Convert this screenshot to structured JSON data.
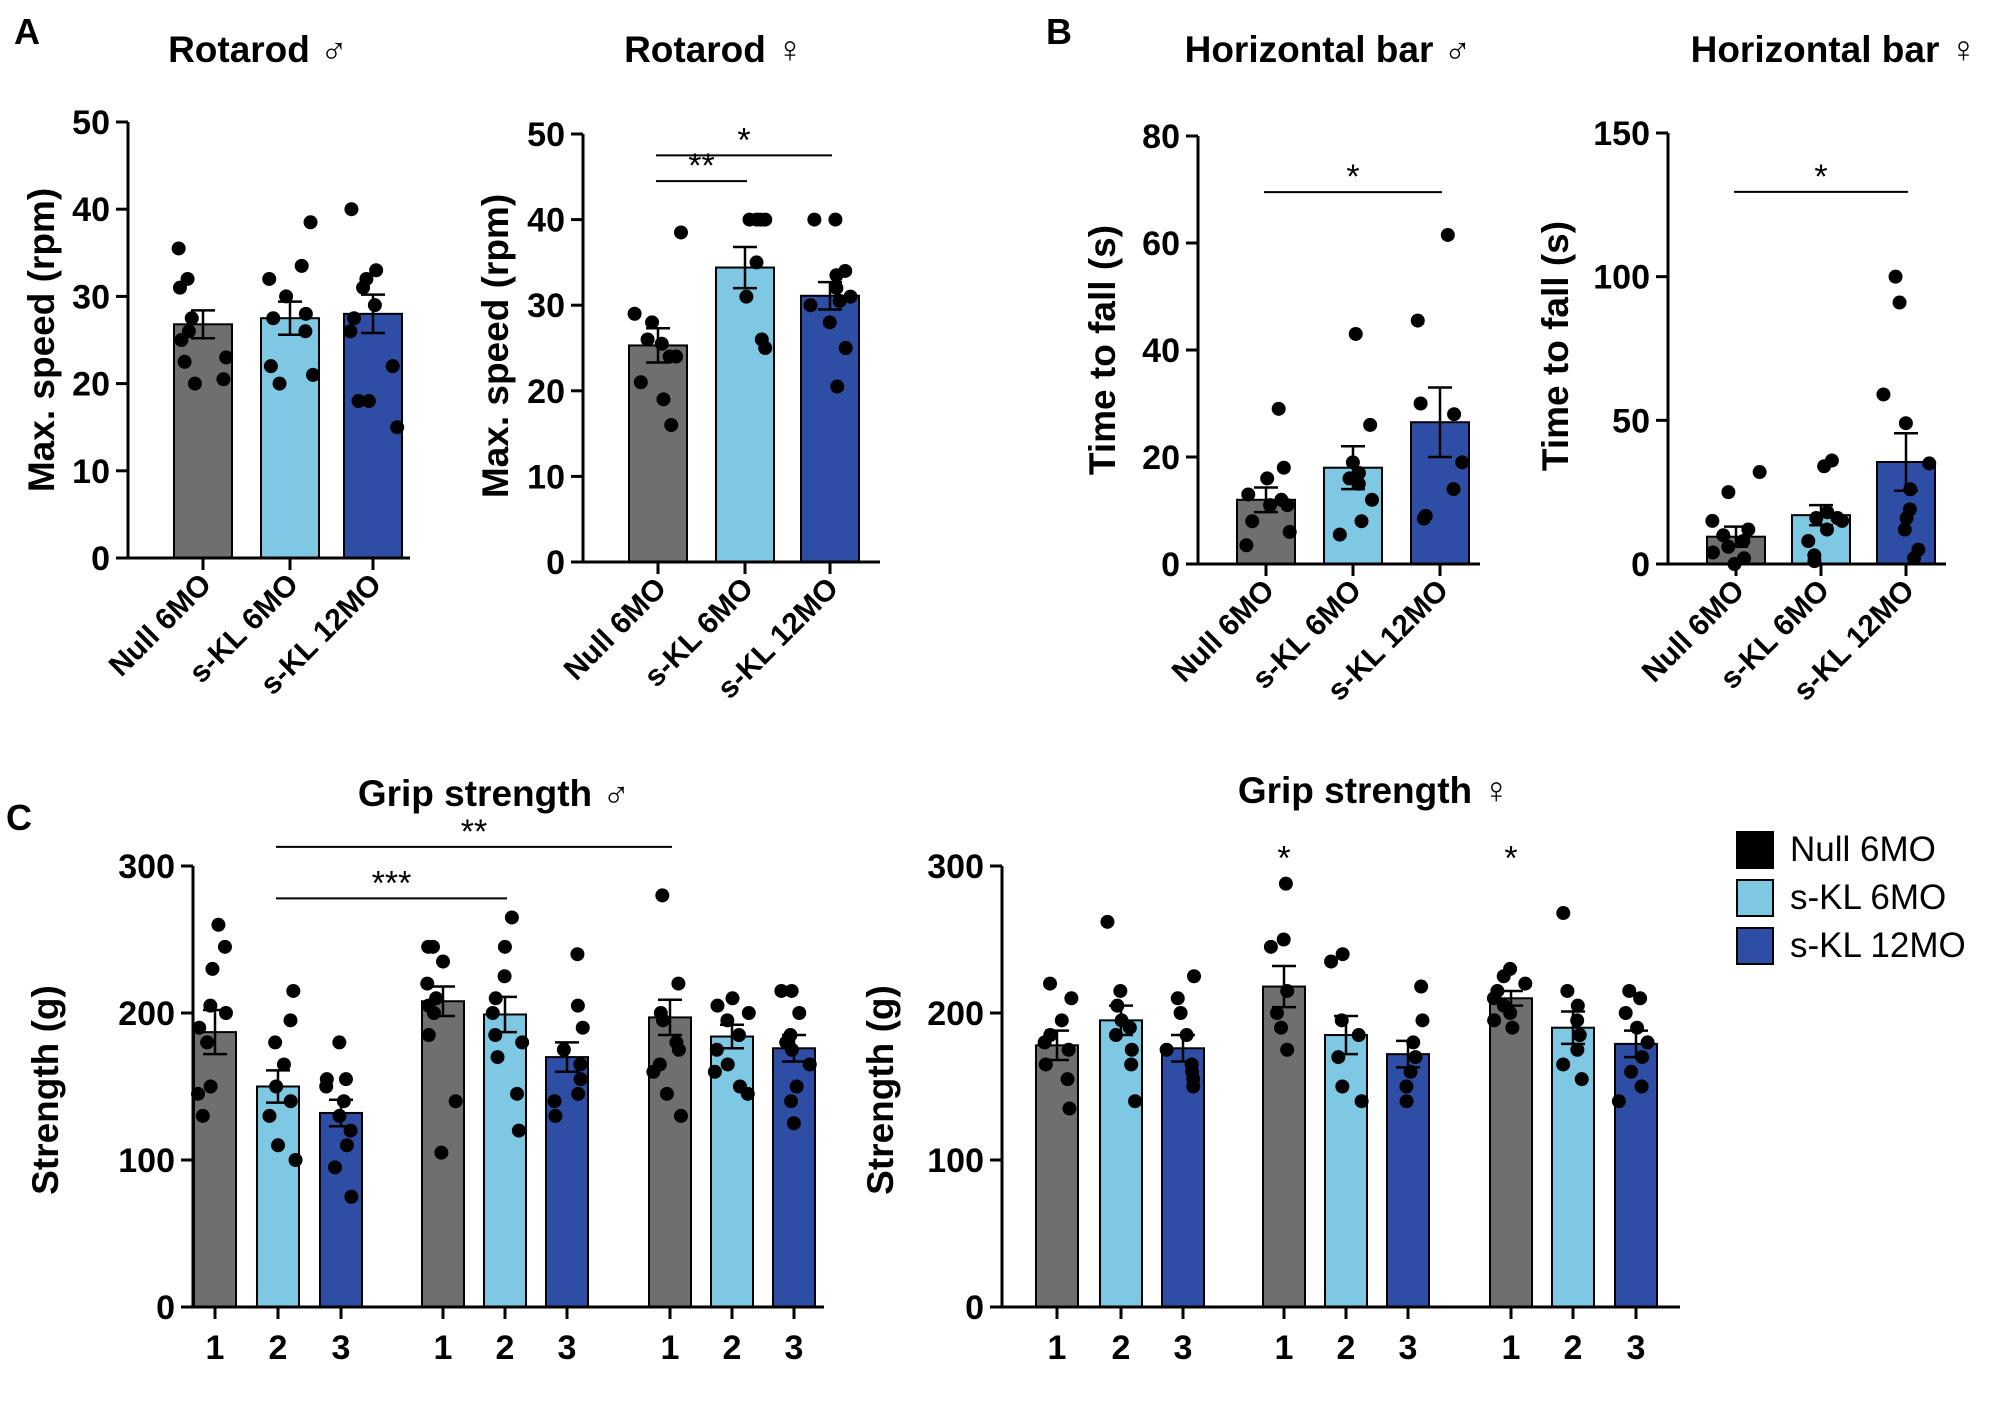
{
  "panel_letters": {
    "a": "A",
    "b": "B",
    "c": "C"
  },
  "legend": [
    {
      "label": "Null 6MO",
      "color": "#000000"
    },
    {
      "label": "s-KL 6MO",
      "color": "#7ec8e3"
    },
    {
      "label": "s-KL 12MO",
      "color": "#2e4ea6"
    }
  ],
  "colors": {
    "null": "#6f706d",
    "skl6": "#7ec8e3",
    "skl12": "#2e4ea6"
  },
  "chart_data": [
    {
      "id": "rotarod_m",
      "type": "bar",
      "title": "Rotarod ♂",
      "ylabel": "Max. speed (rpm)",
      "ylim": [
        0,
        50
      ],
      "yticks": [
        0,
        10,
        20,
        30,
        40,
        50
      ],
      "categories": [
        "Null 6MO",
        "s-KL 6MO",
        "s-KL 12MO"
      ],
      "values": [
        26.8,
        27.5,
        28.0
      ],
      "errors": [
        1.6,
        1.9,
        2.2
      ],
      "points": [
        [
          35.5,
          32,
          31,
          27.5,
          26,
          25,
          23,
          22.5,
          20,
          20.5
        ],
        [
          38.5,
          33.5,
          32,
          30,
          28,
          27.5,
          26,
          22,
          21,
          20
        ],
        [
          40,
          33,
          32,
          31,
          29,
          27.5,
          26,
          22,
          18,
          18,
          15
        ]
      ],
      "significance": []
    },
    {
      "id": "rotarod_f",
      "type": "bar",
      "title": "Rotarod ♀",
      "ylabel": "Max. speed (rpm)",
      "ylim": [
        0,
        50
      ],
      "yticks": [
        0,
        10,
        20,
        30,
        40,
        50
      ],
      "categories": [
        "Null 6MO",
        "s-KL 6MO",
        "s-KL 12MO"
      ],
      "values": [
        25.3,
        34.4,
        31.1
      ],
      "errors": [
        2.0,
        2.4,
        1.6
      ],
      "points": [
        [
          38.5,
          29,
          28,
          26,
          25.5,
          24,
          24,
          21,
          19,
          16
        ],
        [
          40,
          40,
          40,
          40,
          35,
          31,
          26,
          25
        ],
        [
          40,
          40,
          34,
          33.5,
          32,
          31,
          30.5,
          30,
          28,
          25,
          20.5
        ]
      ],
      "significance": [
        {
          "from": 0,
          "to": 1,
          "label": "**",
          "y": 44.5
        },
        {
          "from": 0,
          "to": 2,
          "label": "*",
          "y": 47.5
        }
      ]
    },
    {
      "id": "hbar_m",
      "type": "bar",
      "title": "Horizontal bar ♂",
      "ylabel": "Time to fall (s)",
      "ylim": [
        0,
        80
      ],
      "yticks": [
        0,
        20,
        40,
        60,
        80
      ],
      "categories": [
        "Null 6MO",
        "s-KL 6MO",
        "s-KL 12MO"
      ],
      "values": [
        12.0,
        18.0,
        26.5
      ],
      "errors": [
        2.3,
        4.0,
        6.5
      ],
      "points": [
        [
          29,
          18,
          16,
          13,
          12,
          11,
          11,
          8,
          6,
          3.5
        ],
        [
          43,
          26,
          19,
          17,
          16,
          15,
          12,
          8,
          5.5
        ],
        [
          61.5,
          45.5,
          30,
          28,
          19,
          14,
          9,
          8.5
        ]
      ],
      "significance": [
        {
          "from": 0,
          "to": 2,
          "label": "*",
          "y": 69.5
        }
      ]
    },
    {
      "id": "hbar_f",
      "type": "bar",
      "title": "Horizontal bar ♀",
      "ylabel": "Time to fall (s)",
      "ylim": [
        0,
        150
      ],
      "yticks": [
        0,
        50,
        100,
        150
      ],
      "categories": [
        "Null 6MO",
        "s-KL 6MO",
        "s-KL 12MO"
      ],
      "values": [
        9.5,
        17.0,
        35.5
      ],
      "errors": [
        3.5,
        3.5,
        10.0
      ],
      "points": [
        [
          32,
          25,
          15,
          12,
          10,
          8,
          6,
          4,
          2,
          0
        ],
        [
          36,
          34,
          18,
          16,
          16,
          15,
          12,
          8,
          3,
          1
        ],
        [
          100,
          91,
          59,
          49,
          35,
          26,
          19,
          16,
          12,
          5,
          2
        ]
      ],
      "significance": [
        {
          "from": 0,
          "to": 2,
          "label": "*",
          "y": 129.5
        }
      ]
    },
    {
      "id": "grip_m",
      "type": "bar",
      "title": "Grip strength ♂",
      "ylabel": "Strength (g)",
      "ylim": [
        0,
        300
      ],
      "yticks": [
        0,
        100,
        200,
        300
      ],
      "categories": [
        "1",
        "2",
        "3",
        "1",
        "2",
        "3",
        "1",
        "2",
        "3"
      ],
      "groups": [
        "Null 6MO",
        "s-KL 6MO",
        "s-KL 12MO"
      ],
      "values": [
        187,
        150,
        132,
        208,
        199,
        170,
        197,
        184,
        176
      ],
      "errors": [
        15,
        11,
        9,
        10,
        12,
        10,
        12,
        8,
        9
      ],
      "points": [
        [
          260,
          245,
          230,
          205,
          200,
          190,
          180,
          150,
          145,
          130
        ],
        [
          215,
          195,
          180,
          165,
          150,
          140,
          130,
          110,
          100
        ],
        [
          180,
          155,
          155,
          150,
          140,
          130,
          120,
          110,
          95,
          75
        ],
        [
          245,
          245,
          235,
          220,
          210,
          205,
          200,
          185,
          140,
          105
        ],
        [
          265,
          245,
          225,
          210,
          200,
          185,
          180,
          170,
          145,
          120
        ],
        [
          240,
          205,
          190,
          175,
          165,
          155,
          145,
          140,
          130
        ],
        [
          280,
          220,
          200,
          195,
          180,
          175,
          165,
          160,
          145,
          130
        ],
        [
          210,
          205,
          200,
          195,
          185,
          175,
          165,
          160,
          150,
          145
        ],
        [
          215,
          215,
          200,
          185,
          180,
          175,
          165,
          150,
          140,
          125
        ]
      ],
      "significance": [
        {
          "from": 1,
          "to": 4,
          "label": "***",
          "y": 278
        },
        {
          "from": 1,
          "to": 6,
          "label": "**",
          "y": 313
        }
      ]
    },
    {
      "id": "grip_f",
      "type": "bar",
      "title": "Grip strength ♀",
      "ylabel": "Strength (g)",
      "ylim": [
        0,
        300
      ],
      "yticks": [
        0,
        100,
        200,
        300
      ],
      "categories": [
        "1",
        "2",
        "3",
        "1",
        "2",
        "3",
        "1",
        "2",
        "3"
      ],
      "groups": [
        "Null 6MO",
        "s-KL 6MO",
        "s-KL 12MO"
      ],
      "values": [
        178,
        195,
        176,
        218,
        185,
        172,
        210,
        190,
        179
      ],
      "errors": [
        10,
        10,
        9,
        14,
        13,
        9,
        5,
        11,
        9
      ],
      "points": [
        [
          220,
          210,
          195,
          185,
          180,
          175,
          165,
          155,
          135
        ],
        [
          262,
          215,
          205,
          195,
          190,
          185,
          175,
          165,
          140
        ],
        [
          225,
          210,
          200,
          185,
          175,
          165,
          160,
          155,
          150
        ],
        [
          288,
          250,
          245,
          215,
          200,
          190,
          175
        ],
        [
          240,
          235,
          195,
          185,
          170,
          150,
          140
        ],
        [
          218,
          195,
          180,
          170,
          160,
          150,
          140
        ],
        [
          230,
          225,
          220,
          215,
          210,
          205,
          200,
          195,
          190
        ],
        [
          268,
          215,
          205,
          195,
          185,
          175,
          165,
          155
        ],
        [
          215,
          210,
          200,
          190,
          180,
          170,
          160,
          150,
          140
        ]
      ],
      "significance": [
        {
          "bar": 3,
          "label": "*",
          "y": 310
        },
        {
          "bar": 6,
          "label": "*",
          "y": 310
        }
      ]
    }
  ]
}
